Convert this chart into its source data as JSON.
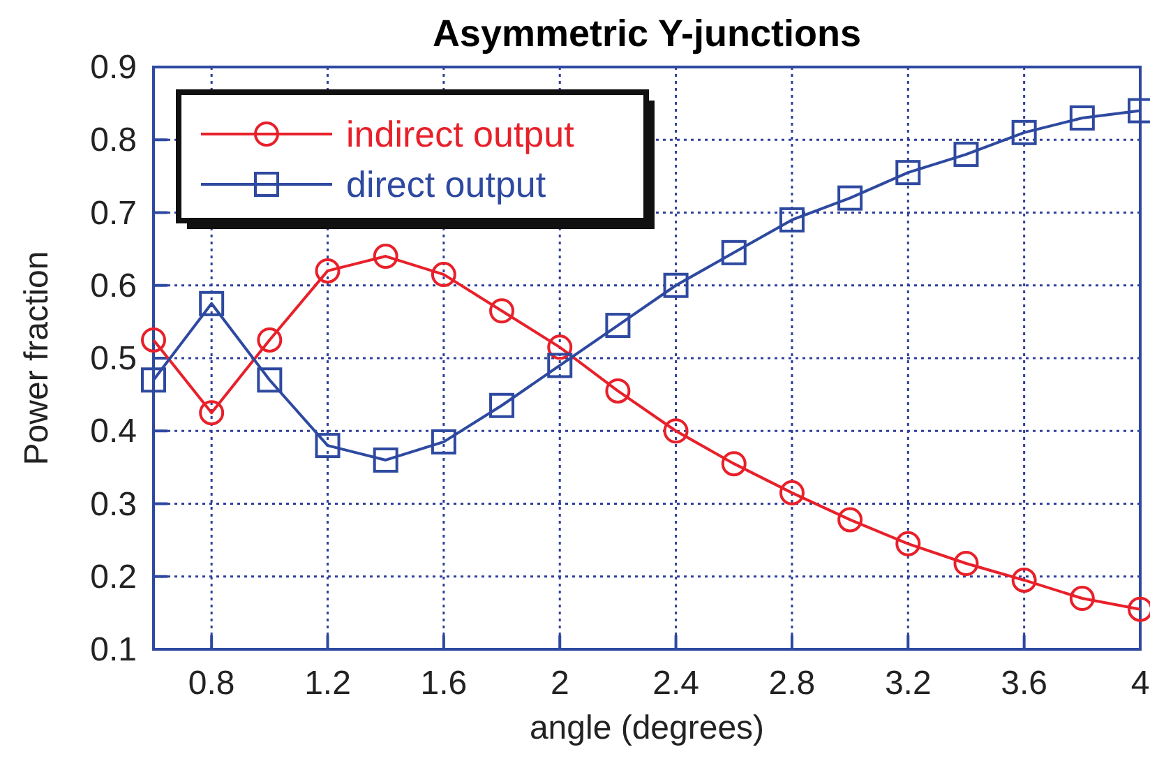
{
  "chart_data": {
    "type": "line",
    "title": "Asymmetric Y-junctions",
    "xlabel": "angle (degrees)",
    "ylabel": "Power fraction",
    "x": [
      0.6,
      0.8,
      1.0,
      1.2,
      1.4,
      1.6,
      1.8,
      2.0,
      2.2,
      2.4,
      2.6,
      2.8,
      3.0,
      3.2,
      3.4,
      3.6,
      3.8,
      4.0
    ],
    "series": [
      {
        "name": "indirect output",
        "color": "#e8202a",
        "marker": "circle",
        "values": [
          0.525,
          0.425,
          0.525,
          0.62,
          0.64,
          0.615,
          0.565,
          0.515,
          0.455,
          0.4,
          0.355,
          0.315,
          0.278,
          0.245,
          0.218,
          0.195,
          0.17,
          0.155
        ]
      },
      {
        "name": "direct output",
        "color": "#2e49a0",
        "marker": "square",
        "values": [
          0.47,
          0.575,
          0.47,
          0.38,
          0.36,
          0.385,
          0.435,
          0.49,
          0.545,
          0.6,
          0.645,
          0.69,
          0.72,
          0.755,
          0.78,
          0.81,
          0.83,
          0.84
        ]
      }
    ],
    "xlim": [
      0.6,
      4
    ],
    "xticks": [
      0.8,
      1.2,
      1.6,
      2,
      2.4,
      2.8,
      3.2,
      3.6,
      4
    ],
    "ylim": [
      0.1,
      0.9
    ],
    "yticks": [
      0.1,
      0.2,
      0.3,
      0.4,
      0.5,
      0.6,
      0.7,
      0.8,
      0.9
    ],
    "grid": true,
    "legend": "top left",
    "line_style": "solid"
  }
}
